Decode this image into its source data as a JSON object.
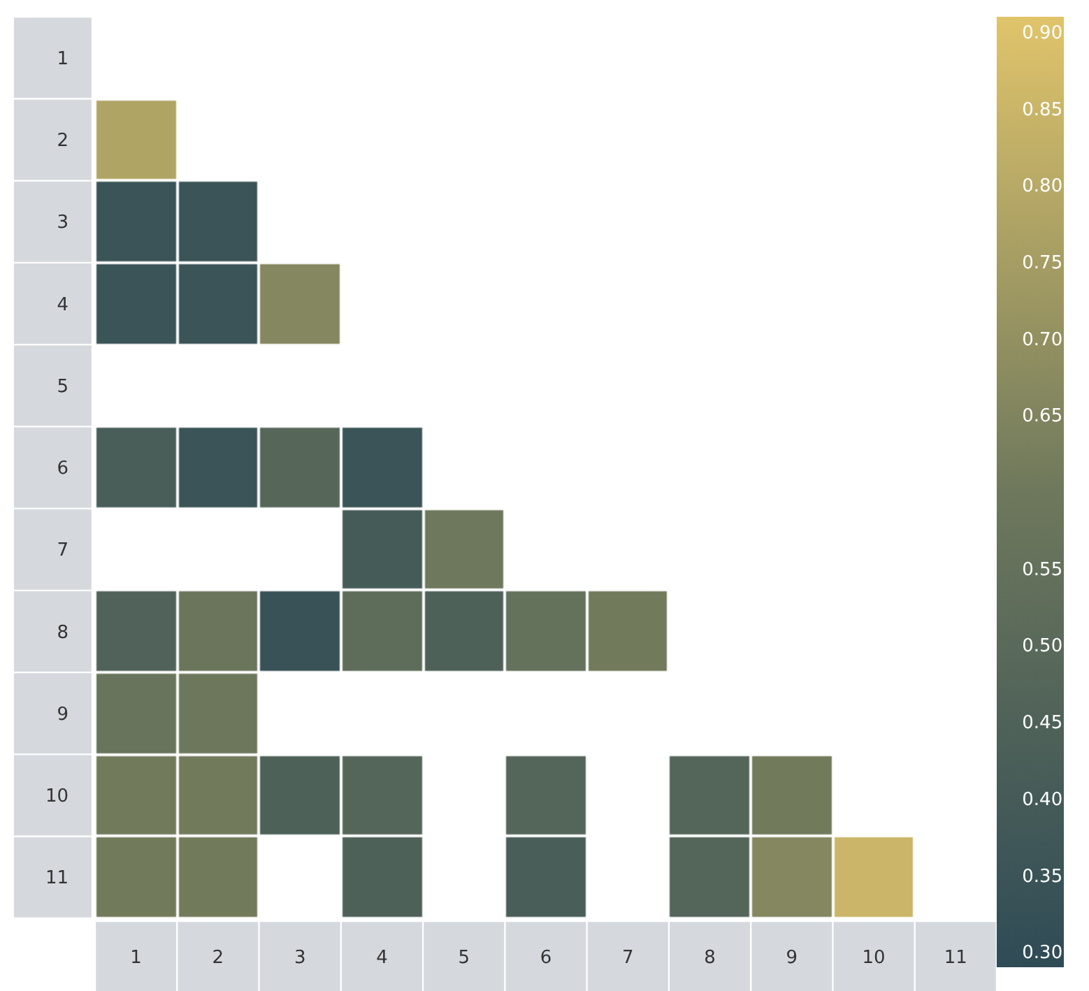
{
  "chart_data": {
    "type": "heatmap",
    "categories": [
      "1",
      "2",
      "3",
      "4",
      "5",
      "6",
      "7",
      "8",
      "9",
      "10",
      "11"
    ],
    "y_categories": [
      "1",
      "2",
      "3",
      "4",
      "5",
      "6",
      "7",
      "8",
      "9",
      "10",
      "11"
    ],
    "cells": [
      [
        null,
        null,
        null,
        null,
        null,
        null,
        null,
        null,
        null,
        null,
        null
      ],
      [
        0.78,
        null,
        null,
        null,
        null,
        null,
        null,
        null,
        null,
        null,
        null
      ],
      [
        0.35,
        0.35,
        null,
        null,
        null,
        null,
        null,
        null,
        null,
        null,
        null
      ],
      [
        0.35,
        0.35,
        0.66,
        null,
        null,
        null,
        null,
        null,
        null,
        null,
        null
      ],
      [
        null,
        null,
        null,
        null,
        null,
        null,
        null,
        null,
        null,
        null,
        null
      ],
      [
        0.42,
        0.35,
        0.48,
        0.35,
        null,
        null,
        null,
        null,
        null,
        null,
        null
      ],
      [
        null,
        null,
        null,
        0.4,
        0.6,
        null,
        null,
        null,
        null,
        null,
        null
      ],
      [
        0.45,
        0.58,
        0.34,
        0.52,
        0.44,
        0.55,
        0.61,
        null,
        null,
        null,
        null
      ],
      [
        0.57,
        0.59,
        null,
        null,
        null,
        null,
        null,
        null,
        null,
        null,
        null
      ],
      [
        0.61,
        0.61,
        0.44,
        0.47,
        null,
        0.47,
        null,
        0.47,
        0.61,
        null,
        null
      ],
      [
        0.61,
        0.61,
        null,
        0.44,
        null,
        0.42,
        null,
        0.47,
        0.66,
        0.85,
        null
      ]
    ],
    "colors": [
      "#2f4b56",
      "#6e785c",
      "#e0c46b"
    ],
    "clim": [
      0.29,
      0.91
    ],
    "cticks": [
      {
        "value": 0.3,
        "label": "0.30"
      },
      {
        "value": 0.35,
        "label": "0.35"
      },
      {
        "value": 0.4,
        "label": "0.40"
      },
      {
        "value": 0.45,
        "label": "0.45"
      },
      {
        "value": 0.5,
        "label": "0.50"
      },
      {
        "value": 0.55,
        "label": "0.55"
      },
      {
        "value": 0.65,
        "label": "0.65"
      },
      {
        "value": 0.7,
        "label": "0.70"
      },
      {
        "value": 0.75,
        "label": "0.75"
      },
      {
        "value": 0.8,
        "label": "0.80"
      },
      {
        "value": 0.85,
        "label": "0.85"
      },
      {
        "value": 0.9,
        "label": "0.90"
      }
    ]
  }
}
